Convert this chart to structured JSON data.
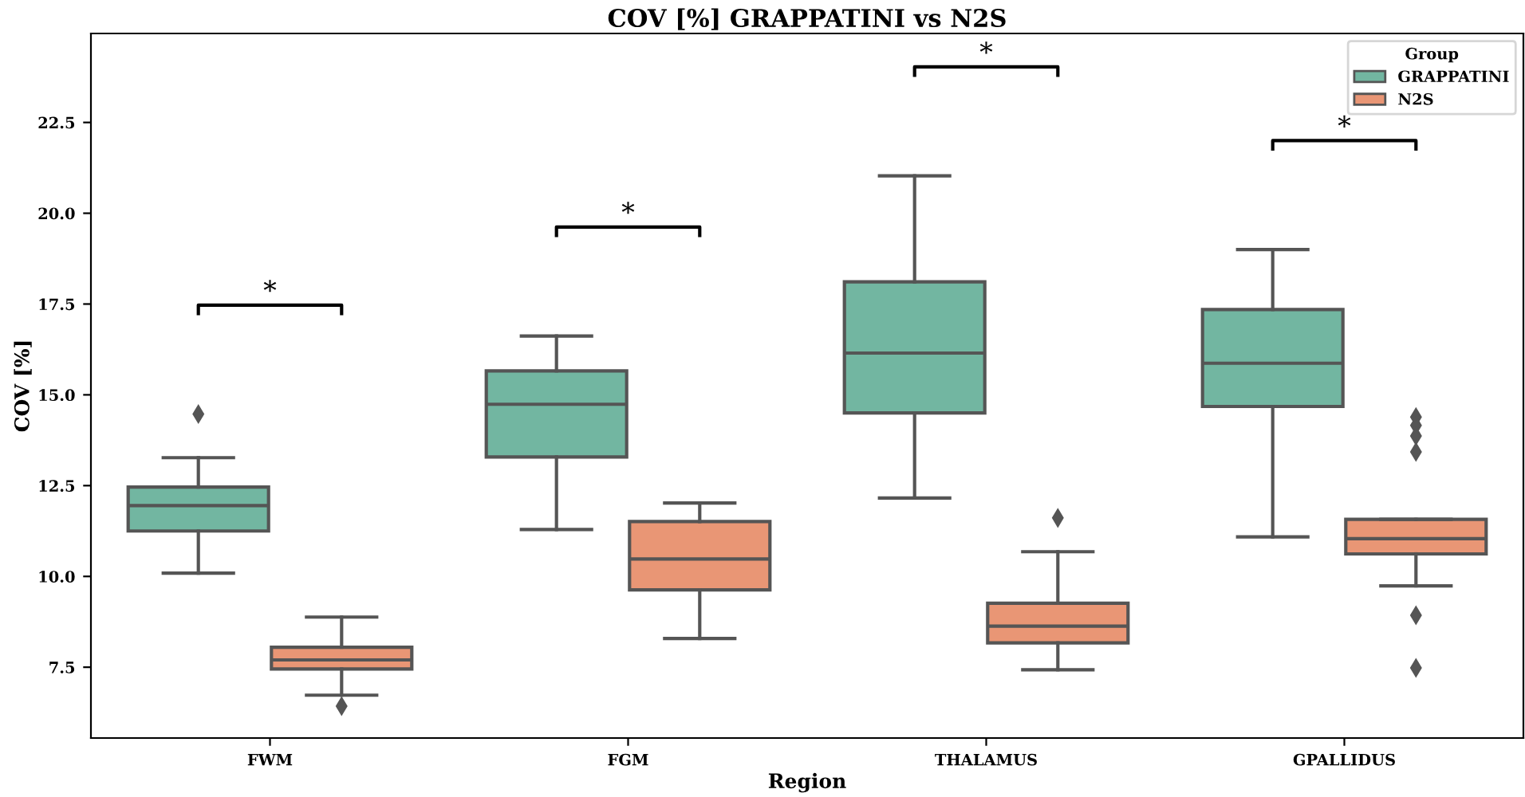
{
  "chart_data": {
    "type": "box",
    "title": "COV [%] GRAPPATINI vs N2S",
    "xlabel": "Region",
    "ylabel": "COV [%]",
    "legend_title": "Group",
    "legend": "top right",
    "grid": false,
    "categories": [
      "FWM",
      "FGM",
      "THALAMUS",
      "GPALLIDUS"
    ],
    "ylim": [
      5.55,
      24.95
    ],
    "yticks": [
      {
        "value": 7.5,
        "label": "7.5"
      },
      {
        "value": 10,
        "label": "10.0"
      },
      {
        "value": 12.5,
        "label": "12.5"
      },
      {
        "value": 15,
        "label": "15.0"
      },
      {
        "value": 17.5,
        "label": "17.5"
      },
      {
        "value": 20,
        "label": "20.0"
      },
      {
        "value": 22.5,
        "label": "22.5"
      }
    ],
    "series": [
      {
        "name": "GRAPPATINI",
        "color": "#72b6a1",
        "boxes": [
          {
            "low": 10.09,
            "q1": 11.25,
            "median": 11.95,
            "q3": 12.46,
            "high": 13.27,
            "outliers": [
              14.47
            ]
          },
          {
            "low": 11.29,
            "q1": 13.29,
            "median": 14.74,
            "q3": 15.66,
            "high": 16.62
          },
          {
            "low": 12.16,
            "q1": 14.5,
            "median": 16.15,
            "q3": 18.11,
            "high": 21.03
          },
          {
            "low": 11.09,
            "q1": 14.68,
            "median": 15.87,
            "q3": 17.35,
            "high": 19.0
          }
        ]
      },
      {
        "name": "N2S",
        "color": "#e99675",
        "boxes": [
          {
            "low": 6.73,
            "q1": 7.45,
            "median": 7.7,
            "q3": 8.05,
            "high": 8.88,
            "outliers": [
              6.43
            ]
          },
          {
            "low": 8.29,
            "q1": 9.63,
            "median": 10.48,
            "q3": 11.51,
            "high": 12.02
          },
          {
            "low": 7.43,
            "q1": 8.17,
            "median": 8.63,
            "q3": 9.26,
            "high": 10.68,
            "outliers": [
              11.61
            ]
          },
          {
            "low": 9.74,
            "q1": 10.62,
            "median": 11.04,
            "q3": 11.57,
            "high": 11.57,
            "outliers": [
              14.39,
              14.16,
              13.87,
              13.43,
              8.93,
              7.48
            ]
          }
        ]
      }
    ],
    "annotations": [
      "*",
      "*",
      "*",
      "*"
    ]
  }
}
